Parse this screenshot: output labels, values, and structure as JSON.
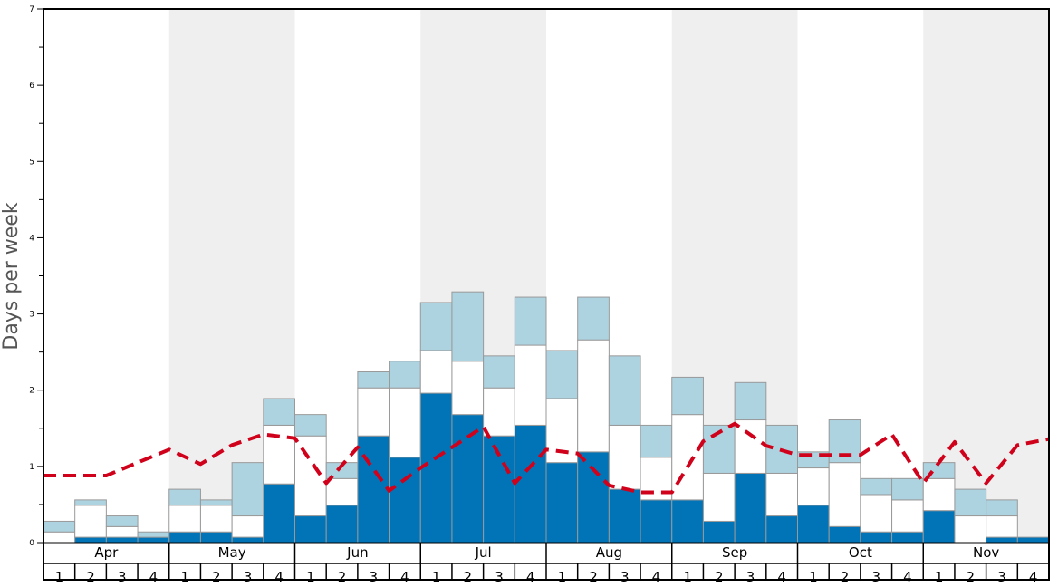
{
  "chart_data": {
    "type": "bar",
    "ylabel": "Days per week",
    "ylim": [
      0,
      7
    ],
    "yticks": [
      0,
      1,
      2,
      3,
      4,
      5,
      6,
      7
    ],
    "months": [
      "Apr",
      "May",
      "Jun",
      "Jul",
      "Aug",
      "Sep",
      "Oct",
      "Nov"
    ],
    "weeks_per_month": [
      "1",
      "2",
      "3",
      "4"
    ],
    "stacked": true,
    "series": [
      {
        "color": "#0074b7",
        "values": [
          0,
          0.07,
          0.07,
          0.07,
          0.14,
          0.14,
          0.07,
          0.77,
          0.35,
          0.49,
          1.4,
          1.12,
          1.96,
          1.68,
          1.4,
          1.54,
          1.05,
          1.19,
          0.7,
          0.56,
          0.56,
          0.28,
          0.91,
          0.35,
          0.49,
          0.21,
          0.14,
          0.14,
          0.42,
          0,
          0.07,
          0.07
        ]
      },
      {
        "color": "#ffffff",
        "values": [
          0.14,
          0.42,
          0.14,
          0,
          0.35,
          0.35,
          0.28,
          0.77,
          1.05,
          0.35,
          0.63,
          0.91,
          0.56,
          0.7,
          0.63,
          1.05,
          0.84,
          1.47,
          0.84,
          0.56,
          1.12,
          0.63,
          0.7,
          0.56,
          0.49,
          0.84,
          0.49,
          0.42,
          0.42,
          0.35,
          0.28,
          0
        ]
      },
      {
        "color": "#aed3e0",
        "values": [
          0.14,
          0.07,
          0.14,
          0.07,
          0.21,
          0.07,
          0.7,
          0.35,
          0.28,
          0.21,
          0.21,
          0.35,
          0.63,
          0.91,
          0.42,
          0.63,
          0.63,
          0.56,
          0.91,
          0.42,
          0.49,
          0.63,
          0.49,
          0.63,
          0.21,
          0.56,
          0.21,
          0.28,
          0.21,
          0.35,
          0.21,
          0
        ]
      }
    ],
    "average_line": {
      "color": "#d0021b",
      "style": "dashed",
      "values": [
        0.88,
        0.88,
        0.88,
        1.05,
        1.22,
        1.03,
        1.28,
        1.42,
        1.37,
        0.78,
        1.25,
        0.68,
        0.98,
        1.25,
        1.52,
        0.78,
        1.22,
        1.17,
        0.75,
        0.66,
        0.66,
        1.33,
        1.56,
        1.27,
        1.15,
        1.15,
        1.15,
        1.42,
        0.78,
        1.32,
        0.78,
        1.28,
        1.36
      ]
    },
    "shaded_months": [
      "May",
      "Jul",
      "Sep",
      "Nov"
    ],
    "grid": false,
    "legend": "none"
  }
}
